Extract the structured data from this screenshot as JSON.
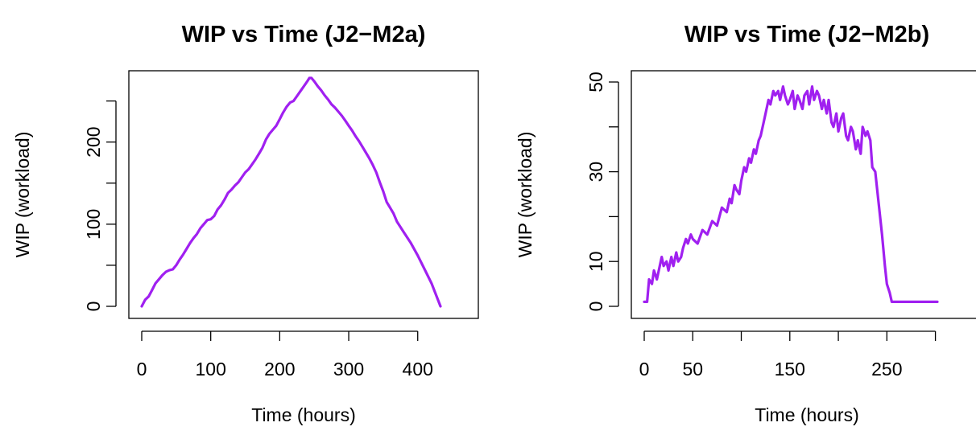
{
  "chart_data": [
    {
      "type": "line",
      "title": "WIP vs Time (J2−M2a)",
      "xlabel": "Time (hours)",
      "ylabel": "WIP (workload)",
      "xlim": [
        0,
        433
      ],
      "ylim": [
        0,
        278
      ],
      "xticks": [
        0,
        100,
        200,
        300,
        400
      ],
      "xtick_labels": [
        "0",
        "100",
        "200",
        "300",
        "400"
      ],
      "yticks": [
        0,
        50,
        100,
        150,
        200,
        250
      ],
      "ytick_labels": [
        "0",
        "",
        "100",
        "",
        "200",
        ""
      ],
      "color": "#a020f0",
      "series": [
        {
          "x": [
            0,
            5,
            10,
            15,
            20,
            25,
            30,
            35,
            40,
            45,
            50,
            55,
            60,
            65,
            70,
            75,
            80,
            85,
            90,
            95,
            100,
            105,
            110,
            115,
            120,
            125,
            130,
            135,
            140,
            145,
            150,
            155,
            160,
            165,
            170,
            175,
            180,
            185,
            190,
            195,
            200,
            205,
            210,
            215,
            220,
            225,
            230,
            235,
            240,
            243,
            246,
            250,
            255,
            260,
            265,
            270,
            275,
            280,
            285,
            290,
            295,
            300,
            305,
            310,
            315,
            320,
            325,
            330,
            335,
            340,
            345,
            350,
            355,
            360,
            365,
            370,
            380,
            390,
            400,
            410,
            420,
            433
          ],
          "y": [
            0,
            8,
            12,
            20,
            28,
            33,
            38,
            42,
            44,
            45,
            50,
            57,
            63,
            70,
            77,
            83,
            88,
            95,
            100,
            105,
            106,
            110,
            118,
            123,
            130,
            138,
            142,
            147,
            151,
            157,
            163,
            167,
            173,
            179,
            186,
            193,
            203,
            210,
            215,
            220,
            228,
            236,
            243,
            248,
            250,
            256,
            262,
            268,
            274,
            278,
            278,
            274,
            268,
            263,
            257,
            252,
            246,
            242,
            237,
            232,
            226,
            220,
            214,
            207,
            201,
            194,
            187,
            180,
            172,
            163,
            151,
            140,
            127,
            120,
            113,
            103,
            90,
            77,
            62,
            45,
            28,
            0
          ]
        }
      ]
    },
    {
      "type": "line",
      "title": "WIP vs Time (J2−M2b)",
      "xlabel": "Time (hours)",
      "ylabel": "WIP (workload)",
      "xlim": [
        0,
        302
      ],
      "ylim": [
        0,
        50
      ],
      "xticks": [
        0,
        50,
        100,
        150,
        200,
        250,
        300
      ],
      "xtick_labels": [
        "0",
        "50",
        "",
        "150",
        "",
        "250",
        ""
      ],
      "yticks": [
        0,
        10,
        20,
        30,
        40,
        50
      ],
      "ytick_labels": [
        "0",
        "10",
        "",
        "30",
        "",
        "50"
      ],
      "color": "#a020f0",
      "series": [
        {
          "x": [
            0,
            3,
            5,
            8,
            10,
            13,
            15,
            18,
            20,
            23,
            25,
            28,
            30,
            33,
            35,
            38,
            40,
            43,
            45,
            48,
            50,
            55,
            60,
            65,
            70,
            75,
            80,
            85,
            88,
            90,
            93,
            95,
            98,
            100,
            103,
            105,
            108,
            110,
            113,
            115,
            118,
            120,
            123,
            125,
            128,
            130,
            133,
            135,
            138,
            140,
            143,
            145,
            148,
            150,
            153,
            155,
            158,
            160,
            163,
            165,
            168,
            170,
            173,
            175,
            178,
            180,
            183,
            185,
            188,
            190,
            193,
            195,
            198,
            200,
            203,
            205,
            208,
            210,
            213,
            215,
            218,
            220,
            223,
            225,
            228,
            230,
            233,
            235,
            238,
            240,
            243,
            245,
            248,
            250,
            253,
            255,
            258,
            260,
            263,
            265,
            268,
            270,
            275,
            280,
            285,
            290,
            295,
            302
          ],
          "y": [
            1,
            1,
            6,
            5,
            8,
            6,
            8,
            11,
            9,
            10,
            8,
            11,
            9,
            12,
            10,
            11,
            13,
            15,
            14,
            16,
            15,
            14,
            17,
            16,
            19,
            18,
            22,
            21,
            24,
            23,
            27,
            26,
            25,
            28,
            31,
            30,
            33,
            32,
            35,
            34,
            37,
            38,
            41,
            43,
            46,
            45,
            48,
            47,
            48,
            46,
            49,
            47,
            45,
            46,
            48,
            44,
            47,
            46,
            44,
            47,
            48,
            45,
            49,
            46,
            48,
            47,
            44,
            46,
            43,
            46,
            41,
            40,
            43,
            39,
            42,
            43,
            38,
            37,
            40,
            39,
            35,
            37,
            34,
            40,
            38,
            39,
            37,
            31,
            30,
            26,
            20,
            16,
            9,
            5,
            3,
            1,
            1,
            1,
            1,
            1,
            1,
            1,
            1,
            1,
            1,
            1,
            1,
            1
          ]
        }
      ]
    }
  ]
}
